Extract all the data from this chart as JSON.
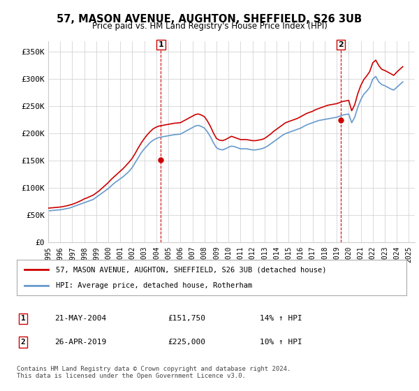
{
  "title": "57, MASON AVENUE, AUGHTON, SHEFFIELD, S26 3UB",
  "subtitle": "Price paid vs. HM Land Registry's House Price Index (HPI)",
  "ylabel_ticks": [
    "£0",
    "£50K",
    "£100K",
    "£150K",
    "£200K",
    "£250K",
    "£300K",
    "£350K"
  ],
  "ytick_values": [
    0,
    50000,
    100000,
    150000,
    200000,
    250000,
    300000,
    350000
  ],
  "ylim": [
    0,
    370000
  ],
  "xlim_start": 1995.0,
  "xlim_end": 2025.5,
  "red_line_color": "#cc0000",
  "blue_line_color": "#6699cc",
  "marker1_date": 2004.38,
  "marker1_value": 151750,
  "marker2_date": 2019.32,
  "marker2_value": 225000,
  "legend_label_red": "57, MASON AVENUE, AUGHTON, SHEFFIELD, S26 3UB (detached house)",
  "legend_label_blue": "HPI: Average price, detached house, Rotherham",
  "annotation1_label": "1",
  "annotation1_text": "21-MAY-2004",
  "annotation1_price": "£151,750",
  "annotation1_hpi": "14% ↑ HPI",
  "annotation2_label": "2",
  "annotation2_text": "26-APR-2019",
  "annotation2_price": "£225,000",
  "annotation2_hpi": "10% ↑ HPI",
  "footer_text": "Contains HM Land Registry data © Crown copyright and database right 2024.\nThis data is licensed under the Open Government Licence v3.0.",
  "background_color": "#ffffff",
  "grid_color": "#cccccc",
  "xtick_years": [
    1995,
    1996,
    1997,
    1998,
    1999,
    2000,
    2001,
    2002,
    2003,
    2004,
    2005,
    2006,
    2007,
    2008,
    2009,
    2010,
    2011,
    2012,
    2013,
    2014,
    2015,
    2016,
    2017,
    2018,
    2019,
    2020,
    2021,
    2022,
    2023,
    2024,
    2025
  ],
  "hpi_data_x": [
    1995.0,
    1995.25,
    1995.5,
    1995.75,
    1996.0,
    1996.25,
    1996.5,
    1996.75,
    1997.0,
    1997.25,
    1997.5,
    1997.75,
    1998.0,
    1998.25,
    1998.5,
    1998.75,
    1999.0,
    1999.25,
    1999.5,
    1999.75,
    2000.0,
    2000.25,
    2000.5,
    2000.75,
    2001.0,
    2001.25,
    2001.5,
    2001.75,
    2002.0,
    2002.25,
    2002.5,
    2002.75,
    2003.0,
    2003.25,
    2003.5,
    2003.75,
    2004.0,
    2004.25,
    2004.5,
    2004.75,
    2005.0,
    2005.25,
    2005.5,
    2005.75,
    2006.0,
    2006.25,
    2006.5,
    2006.75,
    2007.0,
    2007.25,
    2007.5,
    2007.75,
    2008.0,
    2008.25,
    2008.5,
    2008.75,
    2009.0,
    2009.25,
    2009.5,
    2009.75,
    2010.0,
    2010.25,
    2010.5,
    2010.75,
    2011.0,
    2011.25,
    2011.5,
    2011.75,
    2012.0,
    2012.25,
    2012.5,
    2012.75,
    2013.0,
    2013.25,
    2013.5,
    2013.75,
    2014.0,
    2014.25,
    2014.5,
    2014.75,
    2015.0,
    2015.25,
    2015.5,
    2015.75,
    2016.0,
    2016.25,
    2016.5,
    2016.75,
    2017.0,
    2017.25,
    2017.5,
    2017.75,
    2018.0,
    2018.25,
    2018.5,
    2018.75,
    2019.0,
    2019.25,
    2019.5,
    2019.75,
    2020.0,
    2020.25,
    2020.5,
    2020.75,
    2021.0,
    2021.25,
    2021.5,
    2021.75,
    2022.0,
    2022.25,
    2022.5,
    2022.75,
    2023.0,
    2023.25,
    2023.5,
    2023.75,
    2024.0,
    2024.25,
    2024.5
  ],
  "hpi_data_y": [
    58000,
    58500,
    59000,
    59500,
    60000,
    61000,
    62000,
    63000,
    65000,
    67000,
    69000,
    71000,
    73000,
    75000,
    77000,
    79000,
    83000,
    87000,
    91000,
    95000,
    99000,
    104000,
    109000,
    113000,
    117000,
    121000,
    126000,
    131000,
    138000,
    147000,
    156000,
    165000,
    172000,
    178000,
    184000,
    188000,
    191000,
    193000,
    194000,
    195000,
    196000,
    197000,
    198000,
    198500,
    199000,
    202000,
    205000,
    208000,
    211000,
    214000,
    215000,
    213000,
    210000,
    203000,
    194000,
    183000,
    174000,
    171000,
    170000,
    172000,
    175000,
    177000,
    176000,
    174000,
    172000,
    172000,
    172000,
    171000,
    170000,
    170000,
    171000,
    172000,
    174000,
    177000,
    181000,
    185000,
    189000,
    193000,
    197000,
    200000,
    202000,
    204000,
    206000,
    208000,
    210000,
    213000,
    216000,
    218000,
    220000,
    222000,
    224000,
    225000,
    226000,
    227000,
    228000,
    229000,
    230000,
    232000,
    234000,
    235000,
    236000,
    220000,
    230000,
    248000,
    262000,
    272000,
    278000,
    285000,
    300000,
    305000,
    295000,
    290000,
    288000,
    285000,
    282000,
    280000,
    285000,
    290000,
    295000
  ],
  "red_data_x": [
    1995.0,
    1995.25,
    1995.5,
    1995.75,
    1996.0,
    1996.25,
    1996.5,
    1996.75,
    1997.0,
    1997.25,
    1997.5,
    1997.75,
    1998.0,
    1998.25,
    1998.5,
    1998.75,
    1999.0,
    1999.25,
    1999.5,
    1999.75,
    2000.0,
    2000.25,
    2000.5,
    2000.75,
    2001.0,
    2001.25,
    2001.5,
    2001.75,
    2002.0,
    2002.25,
    2002.5,
    2002.75,
    2003.0,
    2003.25,
    2003.5,
    2003.75,
    2004.0,
    2004.25,
    2004.5,
    2004.75,
    2005.0,
    2005.25,
    2005.5,
    2005.75,
    2006.0,
    2006.25,
    2006.5,
    2006.75,
    2007.0,
    2007.25,
    2007.5,
    2007.75,
    2008.0,
    2008.25,
    2008.5,
    2008.75,
    2009.0,
    2009.25,
    2009.5,
    2009.75,
    2010.0,
    2010.25,
    2010.5,
    2010.75,
    2011.0,
    2011.25,
    2011.5,
    2011.75,
    2012.0,
    2012.25,
    2012.5,
    2012.75,
    2013.0,
    2013.25,
    2013.5,
    2013.75,
    2014.0,
    2014.25,
    2014.5,
    2014.75,
    2015.0,
    2015.25,
    2015.5,
    2015.75,
    2016.0,
    2016.25,
    2016.5,
    2016.75,
    2017.0,
    2017.25,
    2017.5,
    2017.75,
    2018.0,
    2018.25,
    2018.5,
    2018.75,
    2019.0,
    2019.25,
    2019.5,
    2019.75,
    2020.0,
    2020.25,
    2020.5,
    2020.75,
    2021.0,
    2021.25,
    2021.5,
    2021.75,
    2022.0,
    2022.25,
    2022.5,
    2022.75,
    2023.0,
    2023.25,
    2023.5,
    2023.75,
    2024.0,
    2024.25,
    2024.5
  ],
  "red_data_y": [
    63000,
    63500,
    64000,
    64500,
    65000,
    66000,
    67000,
    68500,
    70000,
    72000,
    74500,
    77000,
    80000,
    82000,
    84500,
    87000,
    91000,
    95000,
    100000,
    105000,
    110000,
    116000,
    121000,
    126000,
    131000,
    136000,
    142000,
    148000,
    155000,
    164000,
    174000,
    183000,
    191000,
    198000,
    204000,
    209000,
    212000,
    214000,
    215000,
    216000,
    217000,
    218000,
    219000,
    219500,
    220000,
    223000,
    226000,
    229000,
    232000,
    235000,
    236000,
    234000,
    231000,
    223000,
    213000,
    201000,
    191000,
    188000,
    187000,
    189000,
    192000,
    195000,
    193000,
    191000,
    189000,
    189000,
    189000,
    188000,
    187000,
    187000,
    188000,
    189000,
    191000,
    195000,
    199000,
    204000,
    208000,
    212000,
    216000,
    220000,
    222000,
    224000,
    226000,
    228000,
    231000,
    234000,
    237000,
    239000,
    241000,
    244000,
    246000,
    248000,
    250000,
    252000,
    253000,
    254000,
    255000,
    257000,
    259000,
    260000,
    261000,
    242000,
    253000,
    273000,
    288000,
    299000,
    306000,
    314000,
    330000,
    335000,
    325000,
    318000,
    316000,
    313000,
    310000,
    307000,
    313000,
    318000,
    323000
  ]
}
